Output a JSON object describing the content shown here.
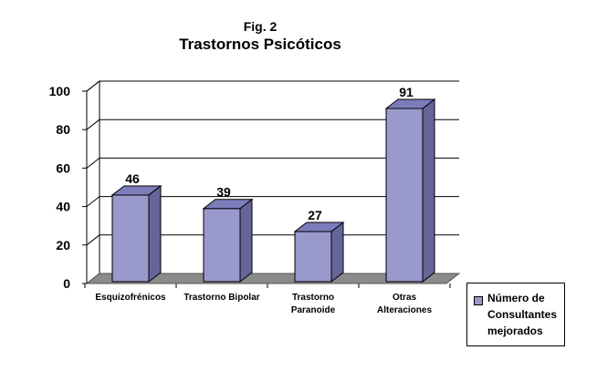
{
  "fig_label": "Fig. 2",
  "title": "Trastornos Psicóticos",
  "legend": {
    "lines": [
      "Número de",
      "Consultantes",
      "mejorados"
    ]
  },
  "colors": {
    "bar_front": "#9999cc",
    "bar_top": "#7c7cbb",
    "bar_side": "#656599",
    "floor": "#8a8a8a",
    "gridline": "#000000"
  },
  "chart_data": {
    "type": "bar",
    "title": "Trastornos Psicóticos",
    "xlabel": "",
    "ylabel": "",
    "ylim": [
      0,
      100
    ],
    "yticks": [
      0,
      20,
      40,
      60,
      80,
      100
    ],
    "categories": [
      [
        "Esquizofrénicos"
      ],
      [
        "Trastorno Bipolar"
      ],
      [
        "Trastorno",
        "Paranoide"
      ],
      [
        "Otras",
        "Alteraciones"
      ]
    ],
    "series": [
      {
        "name": "Número de Consultantes mejorados",
        "values": [
          46,
          39,
          27,
          91
        ]
      }
    ],
    "data_labels": [
      "46",
      "39",
      "27",
      "91"
    ],
    "grid": true,
    "legend_position": "bottom-right",
    "style": "3d"
  }
}
